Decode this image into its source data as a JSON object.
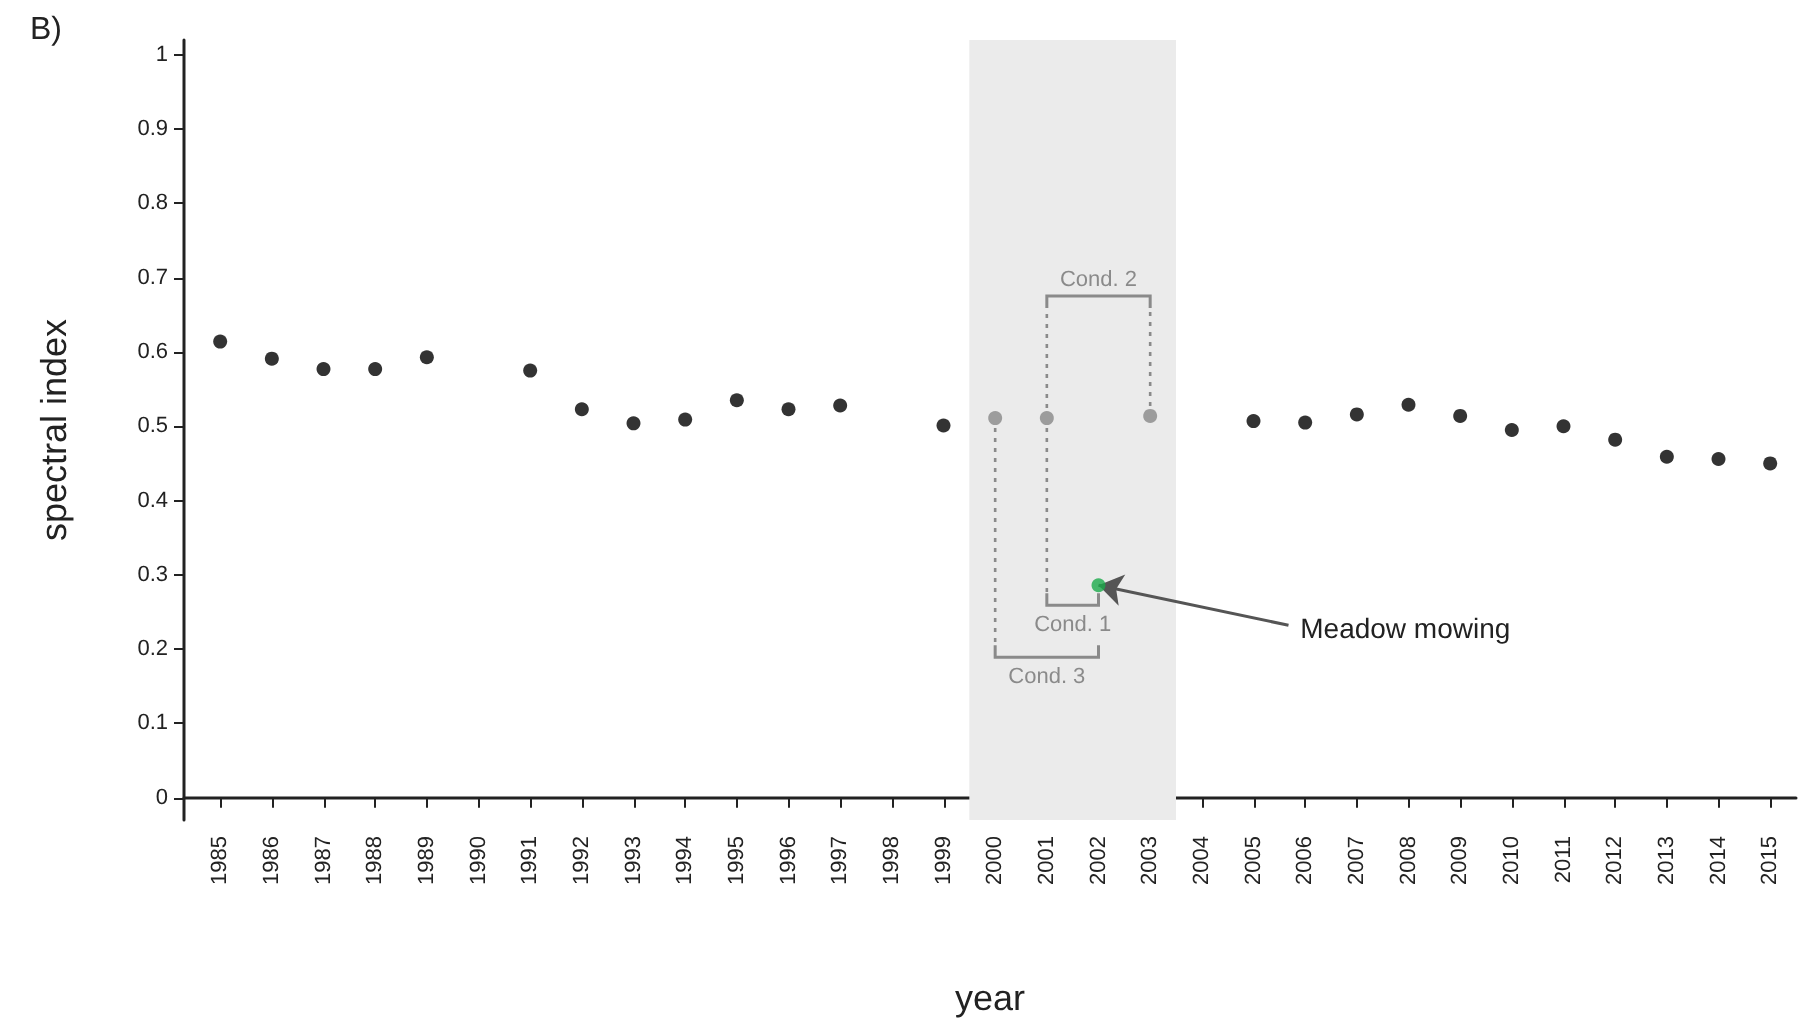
{
  "chart_data": {
    "type": "scatter",
    "title": "B)",
    "xlabel": "year",
    "ylabel": "spectral index",
    "x": [
      1985,
      1986,
      1987,
      1988,
      1989,
      1990,
      1991,
      1992,
      1993,
      1994,
      1995,
      1996,
      1997,
      1998,
      1999,
      2000,
      2001,
      2002,
      2003,
      2004,
      2005,
      2006,
      2007,
      2008,
      2009,
      2010,
      2011,
      2012,
      2013,
      2014,
      2015
    ],
    "series": [
      {
        "color": "#000000",
        "values": [
          0.614,
          0.591,
          0.577,
          0.577,
          0.593,
          null,
          0.575,
          0.523,
          0.504,
          0.509,
          0.535,
          0.523,
          0.528,
          null,
          0.501,
          null,
          null,
          null,
          null,
          null,
          0.507,
          0.505,
          0.516,
          0.529,
          0.514,
          0.495,
          0.5,
          0.482,
          0.459,
          0.456,
          0.45
        ]
      },
      {
        "color": "#888888",
        "values": [
          null,
          null,
          null,
          null,
          null,
          null,
          null,
          null,
          null,
          null,
          null,
          null,
          null,
          null,
          null,
          0.511,
          0.511,
          null,
          0.514,
          null,
          null,
          null,
          null,
          null,
          null,
          null,
          null,
          null,
          null,
          null,
          null
        ]
      },
      {
        "color": "#1aaa4a",
        "values": [
          null,
          null,
          null,
          null,
          null,
          null,
          null,
          null,
          null,
          null,
          null,
          null,
          null,
          null,
          null,
          null,
          null,
          0.286,
          null,
          null,
          null,
          null,
          null,
          null,
          null,
          null,
          null,
          null,
          null,
          null,
          null
        ]
      }
    ],
    "xlim": [
      1984.3,
      2015.5
    ],
    "xticks": [
      1985,
      1986,
      1987,
      1988,
      1989,
      1990,
      1991,
      1992,
      1993,
      1994,
      1995,
      1996,
      1997,
      1998,
      1999,
      2000,
      2001,
      2002,
      2003,
      2004,
      2005,
      2006,
      2007,
      2008,
      2009,
      2010,
      2011,
      2012,
      2013,
      2014,
      2015
    ],
    "ylim": [
      -0.03,
      1.02
    ],
    "yticks": [
      0,
      0.1,
      0.2,
      0.3,
      0.4,
      0.5,
      0.6,
      0.7,
      0.8,
      0.9,
      1
    ],
    "bands": [
      {
        "axis": "x",
        "from": 1999.5,
        "to": 2003.5,
        "color": "#ebebeb"
      }
    ],
    "annotations": [
      {
        "text": "Cond. 1",
        "x": 2001,
        "y": 0.511
      },
      {
        "text": "Cond. 2",
        "x": 2003,
        "y": 0.514
      },
      {
        "text": "Cond. 3",
        "x": 2000,
        "y": 0.511
      },
      {
        "text": "Meadow mowing",
        "x": 2002,
        "y": 0.286
      }
    ],
    "grid": false,
    "marker": "circle"
  }
}
